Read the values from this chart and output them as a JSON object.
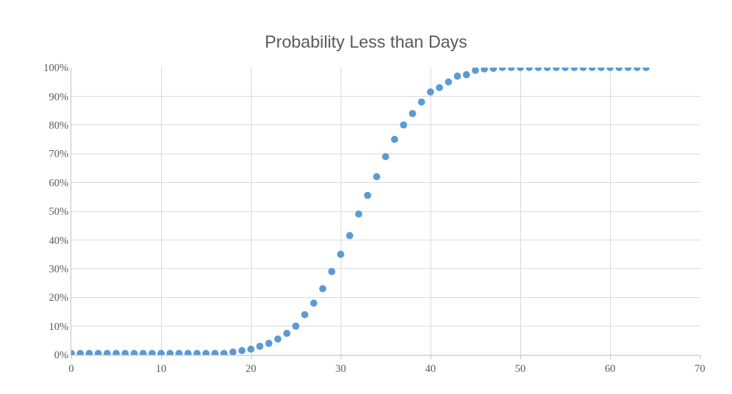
{
  "chart_data": {
    "type": "scatter",
    "title": "Probability Less than Days",
    "x": [
      0,
      1,
      2,
      3,
      4,
      5,
      6,
      7,
      8,
      9,
      10,
      11,
      12,
      13,
      14,
      15,
      16,
      17,
      18,
      19,
      20,
      21,
      22,
      23,
      24,
      25,
      26,
      27,
      28,
      29,
      30,
      31,
      32,
      33,
      34,
      35,
      36,
      37,
      38,
      39,
      40,
      41,
      42,
      43,
      44,
      45,
      46,
      47,
      48,
      49,
      50,
      51,
      52,
      53,
      54,
      55,
      56,
      57,
      58,
      59,
      60,
      61,
      62,
      63,
      64
    ],
    "series": [
      {
        "color": "#5b9bd5",
        "values": [
          0.5,
          0.5,
          0.5,
          0.5,
          0.5,
          0.5,
          0.5,
          0.5,
          0.5,
          0.5,
          0.5,
          0.5,
          0.5,
          0.5,
          0.5,
          0.5,
          0.5,
          0.5,
          1,
          1.5,
          2,
          3,
          4,
          5.5,
          7.5,
          10,
          14,
          18,
          23,
          29,
          35,
          41.5,
          49,
          55.5,
          62,
          69,
          75,
          80,
          84,
          88,
          91.5,
          93,
          95,
          97,
          97.5,
          99,
          99.5,
          99.7,
          100,
          100,
          100,
          100,
          100,
          100,
          100,
          100,
          100,
          100,
          100,
          100,
          100,
          100,
          100,
          100,
          100
        ]
      }
    ],
    "xlim": [
      0,
      70
    ],
    "xticks": [
      0,
      10,
      20,
      30,
      40,
      50,
      60,
      70
    ],
    "ylim": [
      0,
      100
    ],
    "yticks": [
      {
        "value": 0,
        "label": "0%"
      },
      {
        "value": 10,
        "label": "10%"
      },
      {
        "value": 20,
        "label": "20%"
      },
      {
        "value": 30,
        "label": "30%"
      },
      {
        "value": 40,
        "label": "40%"
      },
      {
        "value": 50,
        "label": "50%"
      },
      {
        "value": 60,
        "label": "60%"
      },
      {
        "value": 70,
        "label": "70%"
      },
      {
        "value": 80,
        "label": "80%"
      },
      {
        "value": 90,
        "label": "90%"
      },
      {
        "value": 100,
        "label": "100%"
      }
    ],
    "grid": true,
    "marker": "circle"
  }
}
